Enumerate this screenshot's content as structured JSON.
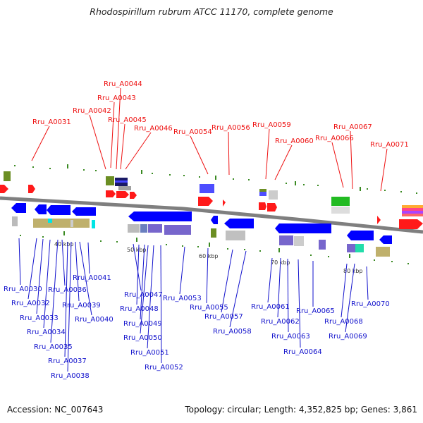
{
  "title": "Rhodospirillum rubrum ATCC 11170, complete genome",
  "footer": {
    "accession": "Accession: NC_007643",
    "topology": "Topology: circular; Length: 4,352,825 bp; Genes: 3,861"
  },
  "colors": {
    "forward_label": "#ee1111",
    "reverse_label": "#1111cc",
    "backbone": "#808080"
  },
  "scale": {
    "ticks": [
      {
        "label": "40 kbp",
        "kbp": 40
      },
      {
        "label": "50 kbp",
        "kbp": 50
      },
      {
        "label": "60 kbp",
        "kbp": 60
      },
      {
        "label": "70 kbp",
        "kbp": 70
      },
      {
        "label": "80 kbp",
        "kbp": 80
      }
    ]
  },
  "forward_genes": [
    "Rru_A0031",
    "Rru_A0042",
    "Rru_A0043",
    "Rru_A0044",
    "Rru_A0045",
    "Rru_A0046",
    "Rru_A0054",
    "Rru_A0056",
    "Rru_A0059",
    "Rru_A0060",
    "Rru_A0066",
    "Rru_A0067",
    "Rru_A0071"
  ],
  "reverse_genes": [
    "Rru_A0030",
    "Rru_A0032",
    "Rru_A0033",
    "Rru_A0034",
    "Rru_A0035",
    "Rru_A0036",
    "Rru_A0037",
    "Rru_A0038",
    "Rru_A0039",
    "Rru_A0040",
    "Rru_A0041",
    "Rru_A0047",
    "Rru_A0048",
    "Rru_A0049",
    "Rru_A0050",
    "Rru_A0051",
    "Rru_A0052",
    "Rru_A0053",
    "Rru_A0055",
    "Rru_A0057",
    "Rru_A0058",
    "Rru_A0061",
    "Rru_A0062",
    "Rru_A0063",
    "Rru_A0064",
    "Rru_A0065",
    "Rru_A0068",
    "Rru_A0069",
    "Rru_A0070"
  ]
}
